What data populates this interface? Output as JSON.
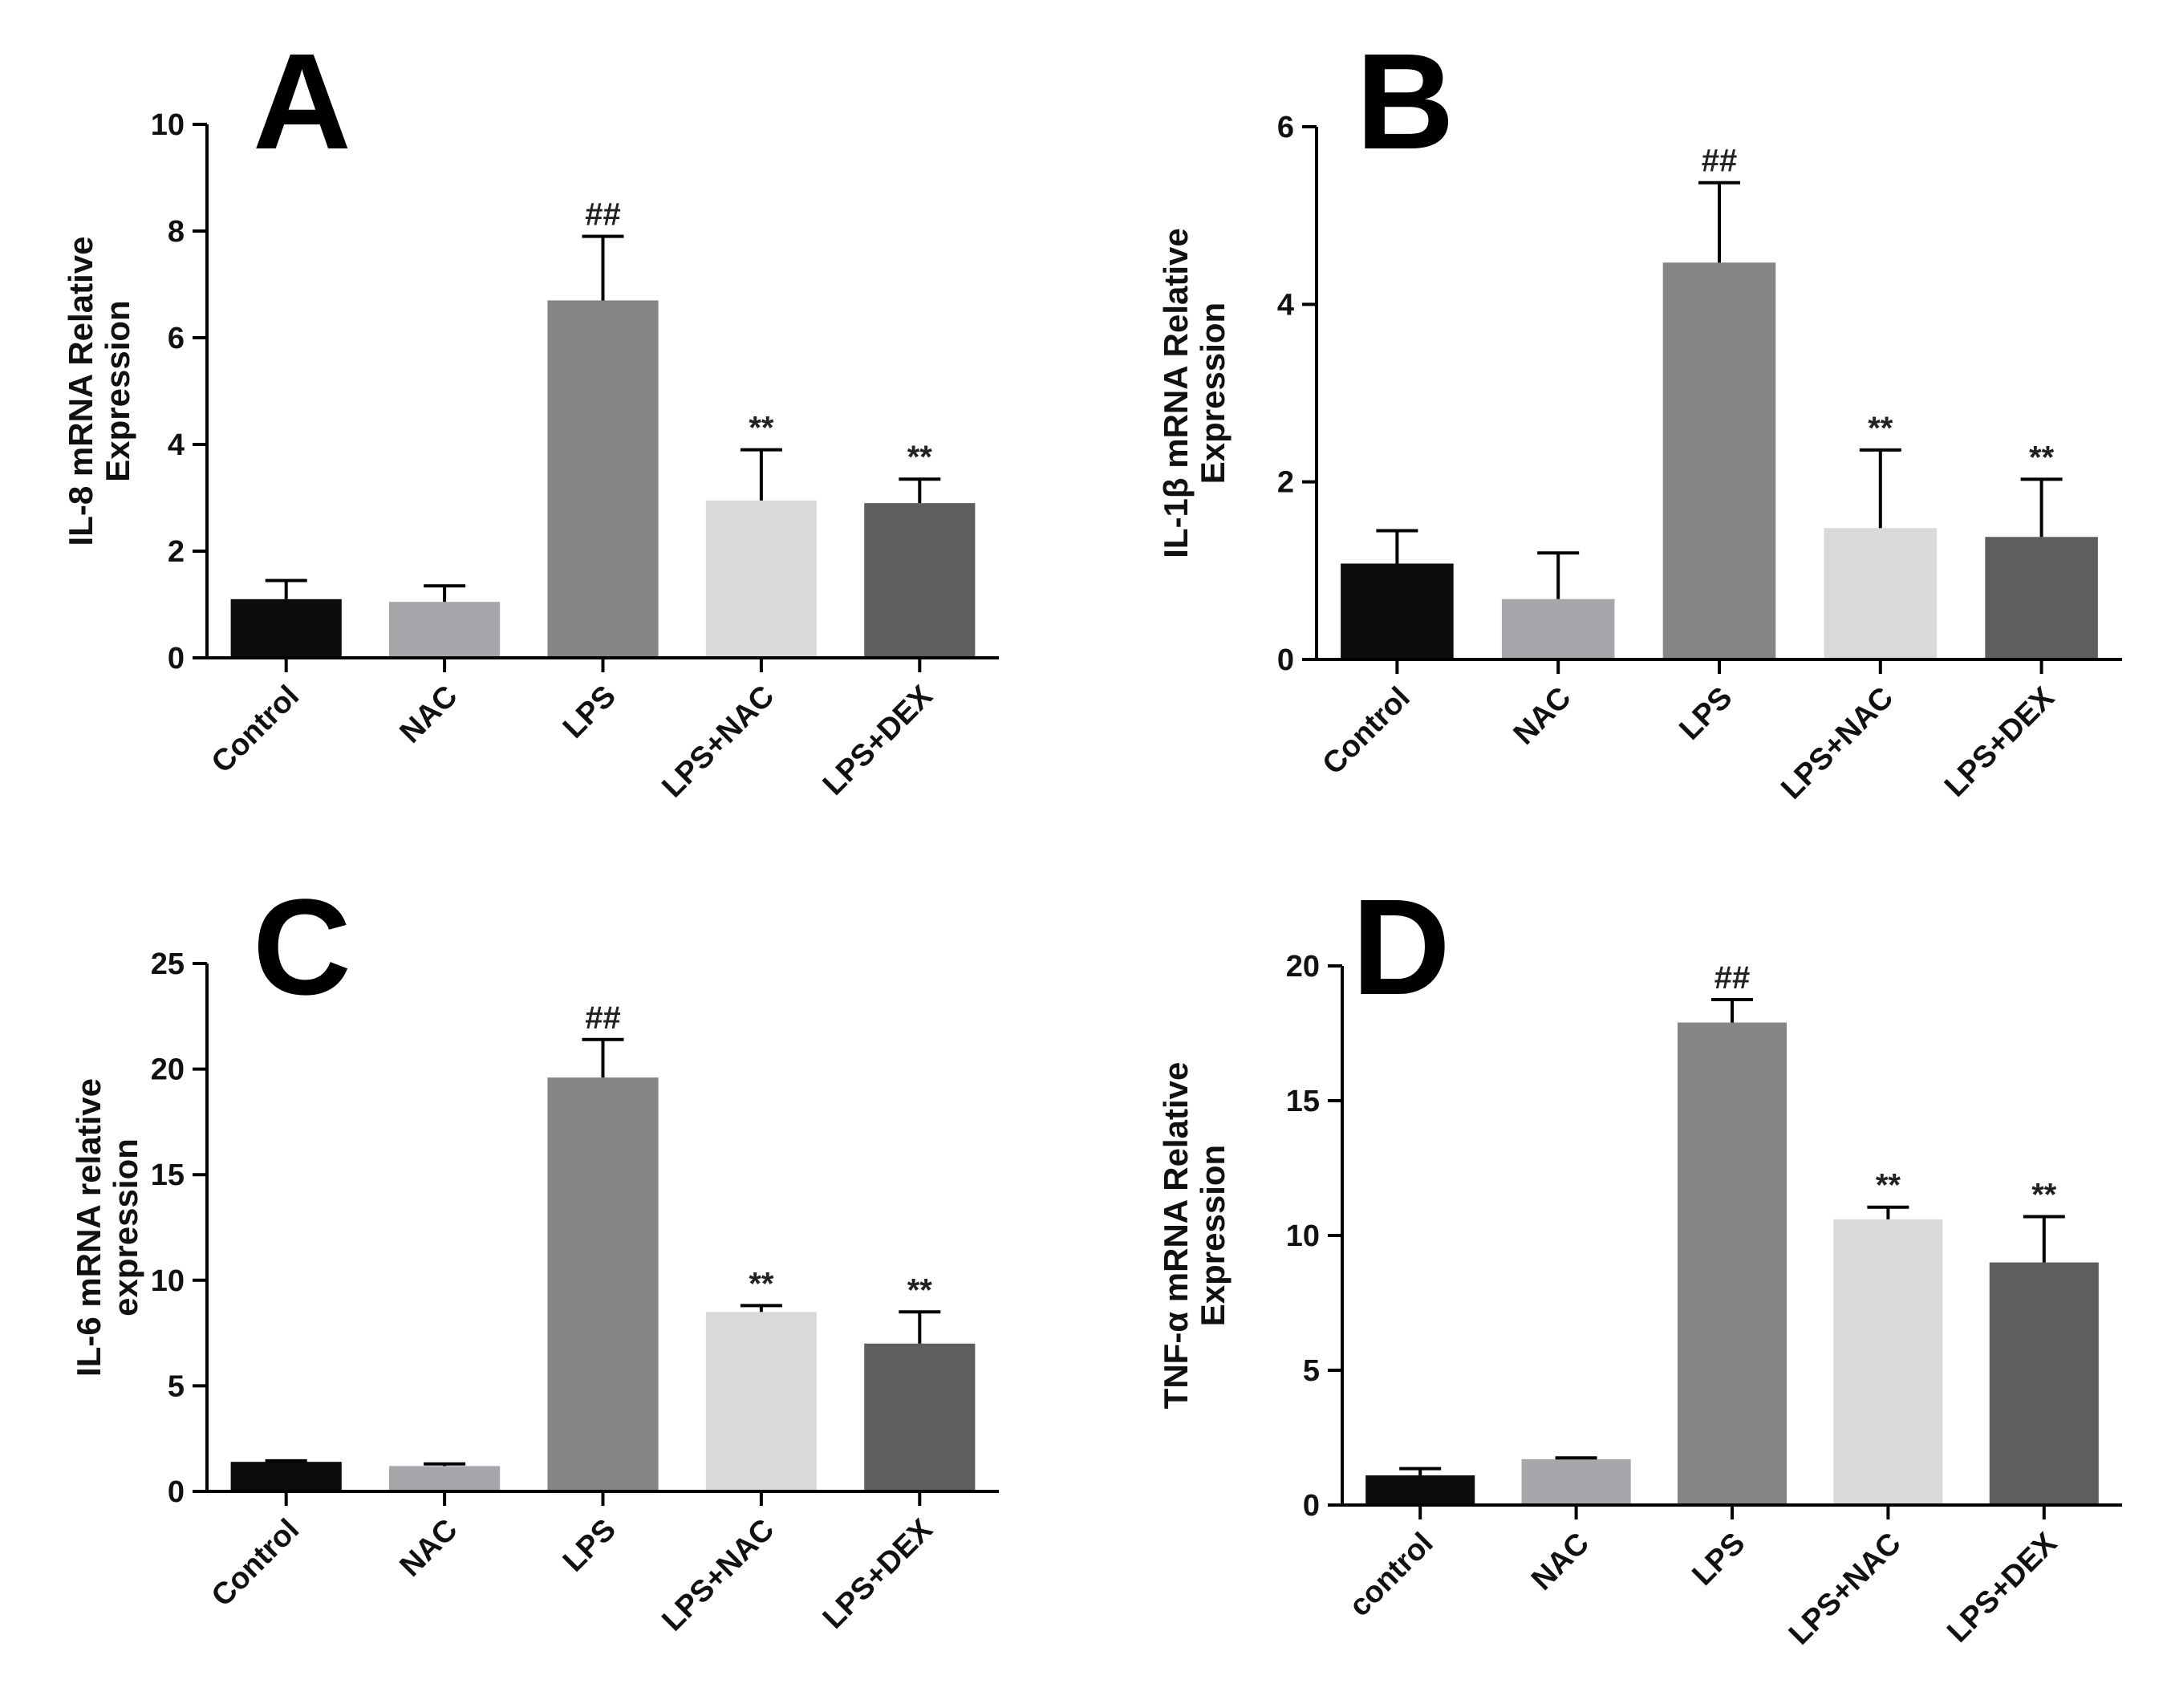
{
  "chart_data": [
    {
      "panel": "A",
      "type": "bar",
      "ylabel": [
        "IL-8 mRNA Relative",
        "Expression"
      ],
      "ylim": [
        0,
        10
      ],
      "yticks": [
        0,
        2,
        4,
        6,
        8,
        10
      ],
      "categories": [
        "Control",
        "NAC",
        "LPS",
        "LPS+NAC",
        "LPS+DEX"
      ],
      "values": [
        1.1,
        1.05,
        6.7,
        2.95,
        2.9
      ],
      "errors": [
        0.35,
        0.3,
        1.2,
        0.95,
        0.45
      ],
      "annotations": [
        "",
        "",
        "##",
        "**",
        "**"
      ],
      "colors": [
        "#0d0d0d",
        "#a6a6ab",
        "#858585",
        "#d9d9d9",
        "#5e5e5e"
      ]
    },
    {
      "panel": "B",
      "type": "bar",
      "ylabel": [
        "IL-1β mRNA Relative",
        "Expression"
      ],
      "ylim": [
        0,
        6
      ],
      "yticks": [
        0,
        2,
        4,
        6
      ],
      "categories": [
        "Control",
        "NAC",
        "LPS",
        "LPS+NAC",
        "LPS+DEX"
      ],
      "values": [
        1.08,
        0.68,
        4.47,
        1.48,
        1.38
      ],
      "errors": [
        0.37,
        0.52,
        0.9,
        0.88,
        0.65
      ],
      "annotations": [
        "",
        "",
        "##",
        "**",
        "**"
      ],
      "colors": [
        "#0d0d0d",
        "#a6a6ab",
        "#858585",
        "#d9d9d9",
        "#5e5e5e"
      ]
    },
    {
      "panel": "C",
      "type": "bar",
      "ylabel": [
        "IL-6 mRNA relative",
        "expression"
      ],
      "ylim": [
        0,
        25
      ],
      "yticks": [
        0,
        5,
        10,
        15,
        20,
        25
      ],
      "categories": [
        "Control",
        "NAC",
        "LPS",
        "LPS+NAC",
        "LPS+DEX"
      ],
      "values": [
        1.4,
        1.2,
        19.6,
        8.5,
        7.0
      ],
      "errors": [
        0.05,
        0.1,
        1.8,
        0.3,
        1.5
      ],
      "annotations": [
        "",
        "",
        "##",
        "**",
        "**"
      ],
      "colors": [
        "#0d0d0d",
        "#a6a6ab",
        "#858585",
        "#d9d9d9",
        "#5e5e5e"
      ]
    },
    {
      "panel": "D",
      "type": "bar",
      "ylabel": [
        "TNF-α mRNA Relative",
        "Expression"
      ],
      "ylim": [
        0,
        20
      ],
      "yticks": [
        0,
        5,
        10,
        15,
        20
      ],
      "categories": [
        "control",
        "NAC",
        "LPS",
        "LPS+NAC",
        "LPS+DEX"
      ],
      "values": [
        1.1,
        1.7,
        17.9,
        10.6,
        9.0
      ],
      "errors": [
        0.25,
        0.05,
        0.85,
        0.45,
        1.7
      ],
      "annotations": [
        "",
        "",
        "##",
        "**",
        "**"
      ],
      "colors": [
        "#0d0d0d",
        "#a6a6ab",
        "#858585",
        "#d9d9d9",
        "#5e5e5e"
      ]
    }
  ]
}
